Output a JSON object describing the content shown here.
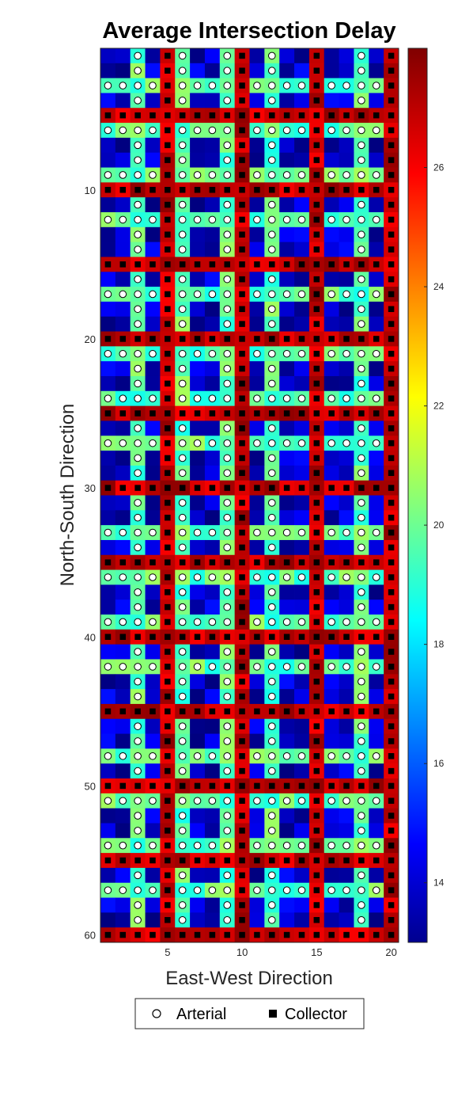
{
  "chart_data": {
    "type": "heatmap",
    "title": "Average Intersection Delay",
    "xlabel": "East-West Direction",
    "ylabel": "North-South Direction",
    "x_range": [
      1,
      20
    ],
    "y_range": [
      1,
      60
    ],
    "x_ticks": [
      5,
      10,
      15,
      20
    ],
    "y_ticks": [
      10,
      20,
      30,
      40,
      50,
      60
    ],
    "colorbar": {
      "range": [
        13,
        28
      ],
      "ticks": [
        14,
        16,
        18,
        20,
        22,
        24,
        26
      ],
      "colormap": "jet"
    },
    "arterial_columns": [
      3,
      6,
      9,
      12,
      18
    ],
    "arterial_rows": [
      3,
      6,
      9,
      12,
      17,
      21,
      24,
      27,
      33,
      36,
      39,
      42,
      48,
      51,
      54,
      57
    ],
    "collector_columns": [
      5,
      10,
      15,
      20
    ],
    "collector_rows": [
      5,
      10,
      15,
      20,
      25,
      30,
      35,
      40,
      45,
      50,
      55,
      60
    ],
    "typical_delay": {
      "collector": 27,
      "arterial": 20,
      "other": 14
    },
    "legend": [
      {
        "marker": "circle",
        "label": "Arterial"
      },
      {
        "marker": "square",
        "label": "Collector"
      }
    ],
    "legend_position": "bottom"
  }
}
